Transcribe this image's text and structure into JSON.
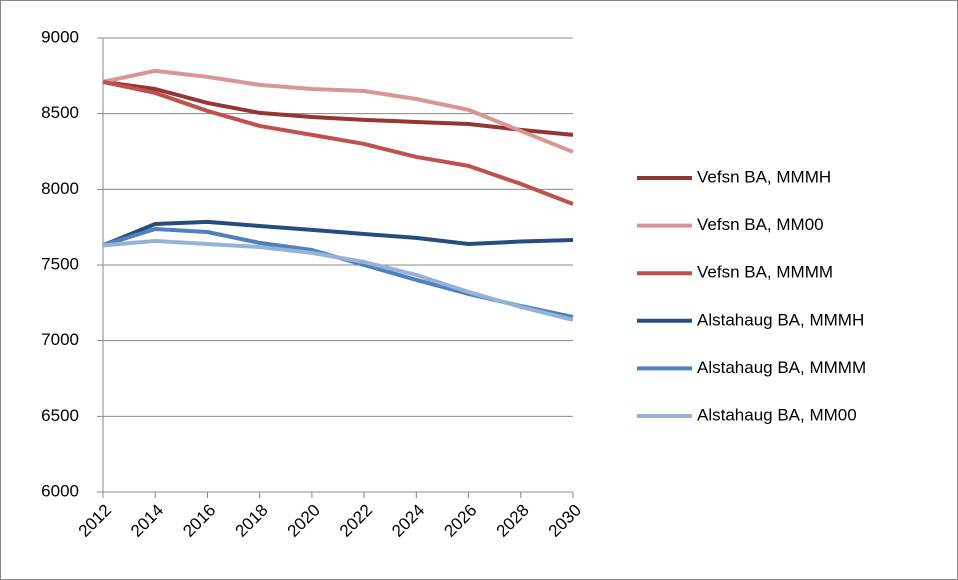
{
  "chart_data": {
    "type": "line",
    "categories": [
      "2012",
      "2014",
      "2016",
      "2018",
      "2020",
      "2022",
      "2024",
      "2026",
      "2028",
      "2030"
    ],
    "ylim": [
      6000,
      9000
    ],
    "yticks": [
      6000,
      6500,
      7000,
      7500,
      8000,
      8500,
      9000
    ],
    "grid": true,
    "legend": "right",
    "series": [
      {
        "name": "Vefsn BA, MMMH",
        "color": "#943634",
        "values": [
          8710,
          8663,
          8571,
          8505,
          8478,
          8459,
          8445,
          8432,
          8393,
          8360
        ]
      },
      {
        "name": "Vefsn BA, MM00",
        "color": "#DA9694",
        "values": [
          8710,
          8783,
          8743,
          8690,
          8663,
          8650,
          8597,
          8525,
          8386,
          8247
        ]
      },
      {
        "name": "Vefsn BA, MMMM",
        "color": "#C0504D",
        "values": [
          8710,
          8637,
          8518,
          8419,
          8360,
          8300,
          8214,
          8155,
          8036,
          7903
        ]
      },
      {
        "name": "Alstahaug BA, MMMH",
        "color": "#254E7E",
        "values": [
          7630,
          7771,
          7785,
          7758,
          7732,
          7705,
          7679,
          7639,
          7655,
          7665
        ]
      },
      {
        "name": "Alstahaug BA, MMMM",
        "color": "#4F81BD",
        "values": [
          7630,
          7738,
          7718,
          7646,
          7599,
          7500,
          7401,
          7309,
          7229,
          7157
        ]
      },
      {
        "name": "Alstahaug BA, MM00",
        "color": "#95B3D7",
        "values": [
          7630,
          7659,
          7639,
          7619,
          7580,
          7520,
          7434,
          7322,
          7223,
          7137
        ]
      }
    ]
  }
}
